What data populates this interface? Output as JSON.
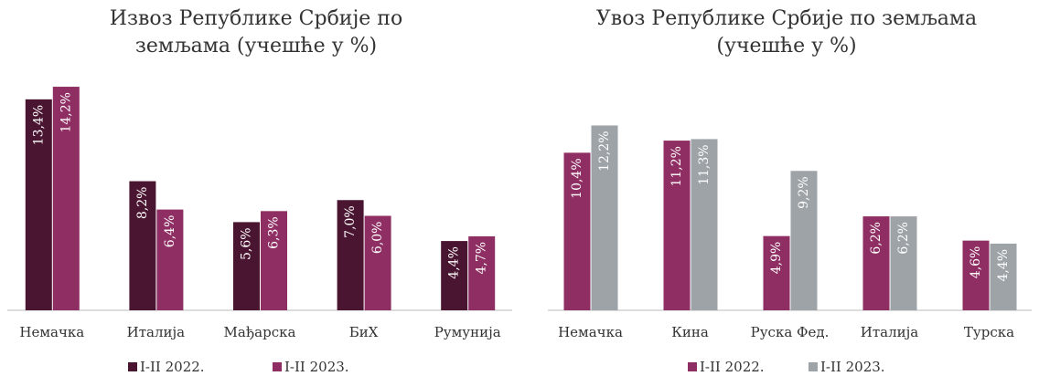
{
  "chart_data": [
    {
      "type": "bar",
      "title": "Извоз Републике Србије по земљама (учешће у %)",
      "categories": [
        "Немачка",
        "Италија",
        "Мађарска",
        "БиХ",
        "Румунија"
      ],
      "series": [
        {
          "name": "I-II 2022.",
          "color": "#4a1530",
          "values": [
            13.4,
            8.2,
            5.6,
            7.0,
            4.4
          ],
          "value_labels": [
            "13,4%",
            "8,2%",
            "5,6%",
            "7,0%",
            "4,4%"
          ]
        },
        {
          "name": "I-II 2023.",
          "color": "#8e2e62",
          "values": [
            14.2,
            6.4,
            6.3,
            6.0,
            4.7
          ],
          "value_labels": [
            "14,2%",
            "6,4%",
            "6,3%",
            "6,0%",
            "4,7%"
          ]
        }
      ]
    },
    {
      "type": "bar",
      "title": "Увоз Републике Србије по земљама (учешће у %)",
      "categories": [
        "Немачка",
        "Кина",
        "Руска Фед.",
        "Италија",
        "Турска"
      ],
      "series": [
        {
          "name": "I-II 2022.",
          "color": "#8e2e62",
          "values": [
            10.4,
            11.2,
            4.9,
            6.2,
            4.6
          ],
          "value_labels": [
            "10,4%",
            "11,2%",
            "4,9%",
            "6,2%",
            "4,6%"
          ]
        },
        {
          "name": "I-II 2023.",
          "color": "#9ea3a8",
          "values": [
            12.2,
            11.3,
            9.2,
            6.2,
            4.4
          ],
          "value_labels": [
            "12,2%",
            "11,3%",
            "9,2%",
            "6,2%",
            "4,4%"
          ]
        }
      ]
    }
  ]
}
